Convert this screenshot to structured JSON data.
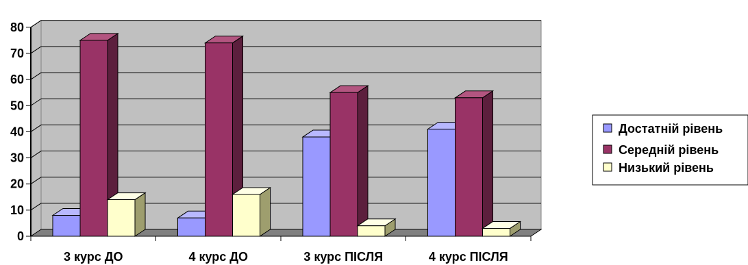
{
  "chart_data": {
    "type": "bar",
    "categories": [
      "3 курс ДО",
      "4 курс ДО",
      "3 курс ПІСЛЯ",
      "4 курс ПІСЛЯ"
    ],
    "series": [
      {
        "name": "Достатній рівень",
        "values": [
          8,
          7,
          38,
          41
        ],
        "color": "#9999ff",
        "dark": "#6a6ab8",
        "light": "#b8b8ff"
      },
      {
        "name": "Середній рівень",
        "values": [
          75,
          74,
          55,
          53
        ],
        "color": "#993366",
        "dark": "#5c1f3d",
        "light": "#b35580"
      },
      {
        "name": "Низький рівень",
        "values": [
          14,
          16,
          4,
          3
        ],
        "color": "#ffffcc",
        "dark": "#9e9e6e",
        "light": "#ffffe6"
      }
    ],
    "yticks": [
      0,
      10,
      20,
      30,
      40,
      50,
      60,
      70,
      80
    ],
    "ylim": [
      0,
      80
    ],
    "grid": true,
    "legend_position": "right",
    "plot_color": "#c0c0c0",
    "floor_color": "#808080",
    "title": "",
    "xlabel": "",
    "ylabel": ""
  }
}
